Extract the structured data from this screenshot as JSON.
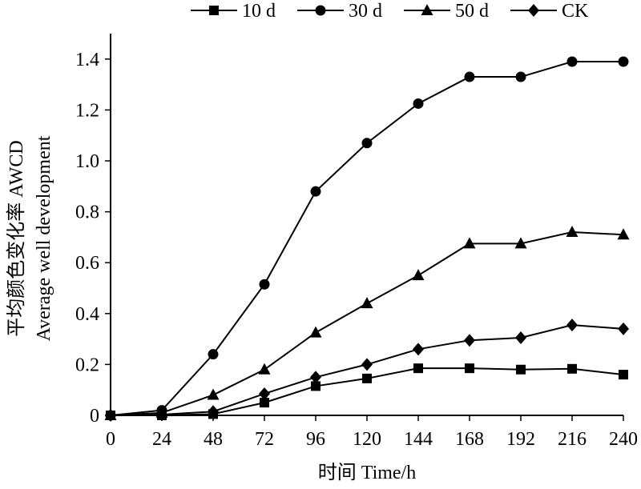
{
  "chart_data": {
    "type": "line",
    "xlabel": "时间 Time/h",
    "ylabel_zh": "平均颜色变化率 AWCD",
    "ylabel_en": "Average well development",
    "x": [
      0,
      24,
      48,
      72,
      96,
      120,
      144,
      168,
      192,
      216,
      240
    ],
    "x_ticks": [
      "0",
      "24",
      "48",
      "72",
      "96",
      "120",
      "144",
      "168",
      "192",
      "216",
      "240"
    ],
    "y_ticks": [
      "0",
      "0.2",
      "0.4",
      "0.6",
      "0.8",
      "1.0",
      "1.2",
      "1.4"
    ],
    "xlim": [
      0,
      240
    ],
    "ylim": [
      0,
      1.5
    ],
    "grid": false,
    "legend_position": "top",
    "series": [
      {
        "name": "10 d",
        "marker": "square",
        "values": [
          0,
          0,
          0.005,
          0.05,
          0.115,
          0.145,
          0.185,
          0.185,
          0.18,
          0.183,
          0.16
        ]
      },
      {
        "name": "30 d",
        "marker": "circle",
        "values": [
          0,
          0.02,
          0.24,
          0.515,
          0.88,
          1.07,
          1.225,
          1.33,
          1.33,
          1.39,
          1.39
        ]
      },
      {
        "name": "50 d",
        "marker": "triangle",
        "values": [
          0,
          0.01,
          0.08,
          0.18,
          0.325,
          0.44,
          0.55,
          0.675,
          0.675,
          0.72,
          0.71
        ]
      },
      {
        "name": "CK",
        "marker": "diamond",
        "values": [
          0,
          0.003,
          0.015,
          0.085,
          0.15,
          0.2,
          0.26,
          0.295,
          0.305,
          0.355,
          0.34
        ]
      }
    ],
    "colors": {
      "line": "#000000",
      "marker": "#000000",
      "background": "#ffffff"
    }
  }
}
